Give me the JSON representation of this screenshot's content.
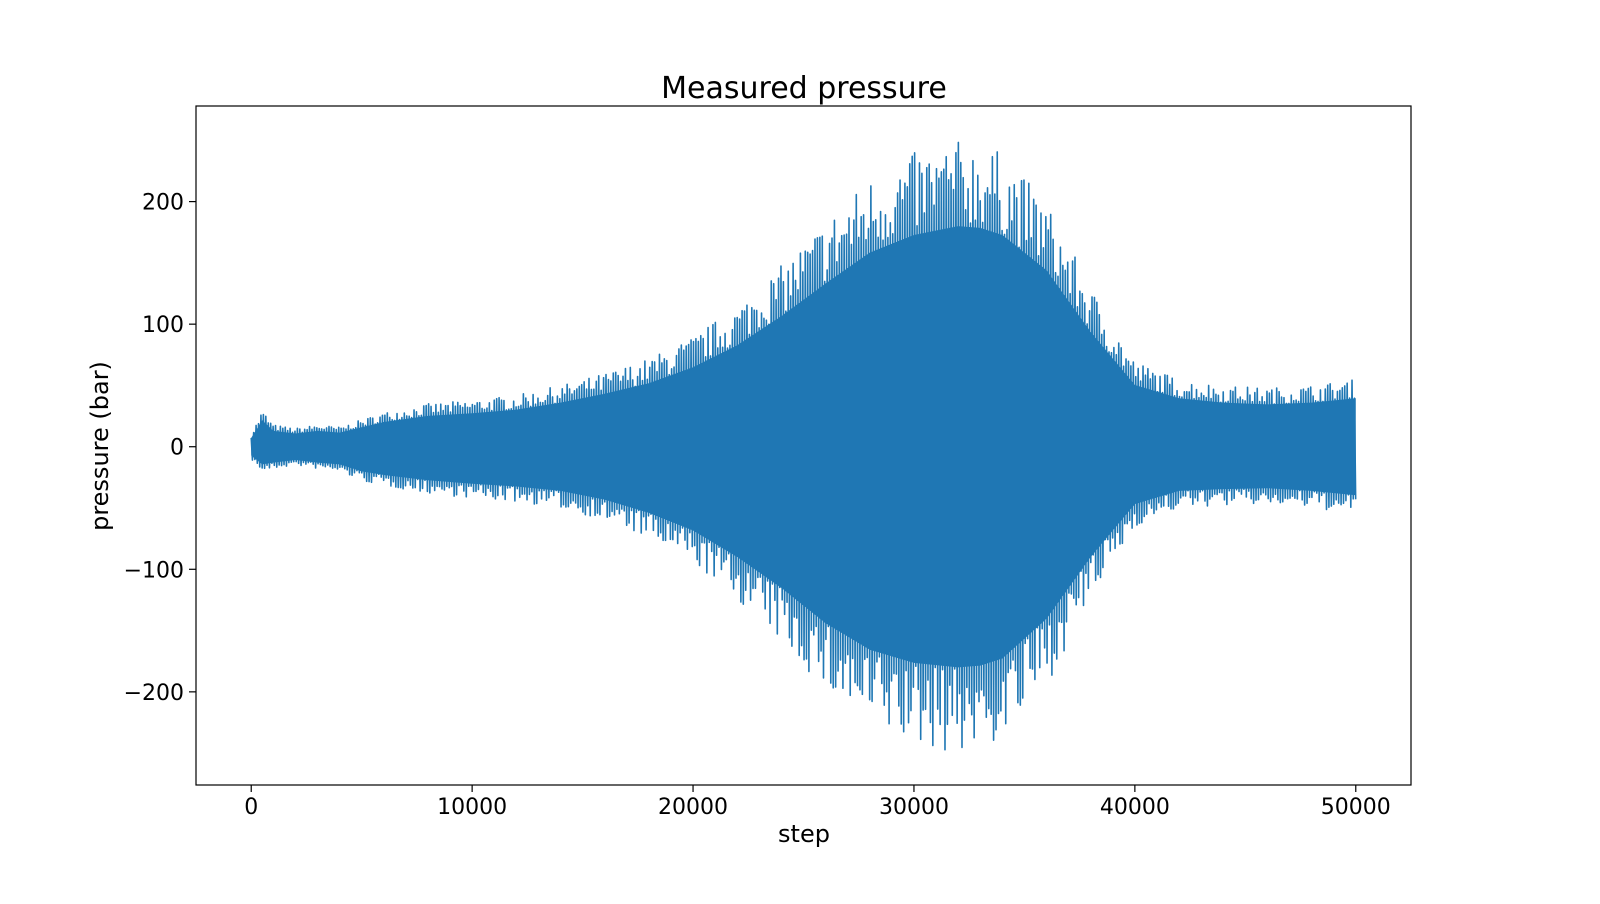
{
  "chart_data": {
    "type": "line",
    "title": "Measured pressure",
    "xlabel": "step",
    "ylabel": "pressure (bar)",
    "xlim": [
      -2500,
      52500
    ],
    "ylim": [
      -276,
      278
    ],
    "x_ticks": [
      0,
      10000,
      20000,
      30000,
      40000,
      50000
    ],
    "x_tick_labels": [
      "0",
      "10000",
      "20000",
      "30000",
      "40000",
      "50000"
    ],
    "y_ticks": [
      -200,
      -100,
      0,
      100,
      200
    ],
    "y_tick_labels": [
      "−200",
      "−100",
      "0",
      "100",
      "200"
    ],
    "grid": false,
    "legend": "none",
    "series": [
      {
        "color": "#1f77b4",
        "envelope": {
          "x": [
            0,
            500,
            1000,
            2000,
            3000,
            4000,
            5000,
            6000,
            8000,
            10000,
            12000,
            14000,
            16000,
            18000,
            20000,
            22000,
            24000,
            26000,
            28000,
            30000,
            32000,
            33000,
            34000,
            36000,
            38000,
            40000,
            42000,
            44000,
            46000,
            48000,
            50000
          ],
          "upper": [
            10,
            30,
            18,
            15,
            18,
            16,
            22,
            28,
            35,
            38,
            42,
            50,
            60,
            72,
            90,
            115,
            148,
            185,
            220,
            240,
            250,
            248,
            240,
            200,
            130,
            70,
            55,
            50,
            48,
            50,
            55
          ],
          "lower": [
            -10,
            -20,
            -18,
            -15,
            -18,
            -20,
            -28,
            -32,
            -38,
            -42,
            -45,
            -50,
            -60,
            -75,
            -95,
            -125,
            -160,
            -200,
            -230,
            -245,
            -250,
            -248,
            -240,
            -195,
            -125,
            -65,
            -50,
            -48,
            -47,
            -50,
            -55
          ]
        }
      }
    ]
  }
}
